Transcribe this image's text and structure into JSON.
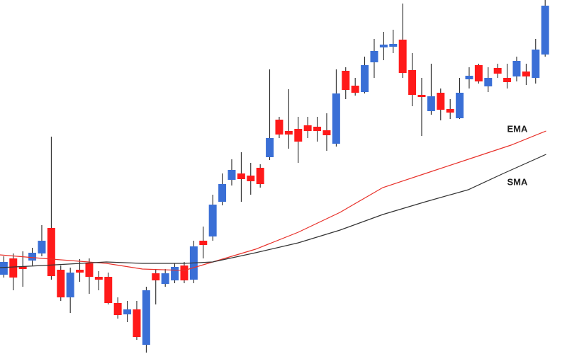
{
  "chart_data": {
    "type": "candlestick",
    "up_color": "#3a6fd6",
    "down_color": "#ff1a1a",
    "xlim": [
      -0.4,
      59.3
    ],
    "ylim": [
      0,
      500
    ],
    "open": [
      112,
      135,
      124,
      132,
      142,
      178,
      119,
      80,
      119,
      128,
      109,
      109,
      72,
      56,
      63,
      13,
      114,
      99,
      104,
      125,
      105,
      160,
      166,
      215,
      246,
      255,
      252,
      263,
      278,
      331,
      315,
      318,
      323,
      321,
      316,
      297,
      400,
      379,
      370,
      412,
      433,
      434,
      444,
      401,
      366,
      343,
      369,
      346,
      333,
      388,
      408,
      378,
      404,
      390,
      392,
      399,
      390,
      423
    ],
    "high": [
      138,
      142,
      145,
      150,
      182,
      307,
      125,
      122,
      134,
      135,
      117,
      115,
      80,
      75,
      75,
      95,
      120,
      120,
      128,
      130,
      160,
      180,
      225,
      255,
      275,
      285,
      270,
      268,
      402,
      335,
      374,
      335,
      335,
      335,
      340,
      402,
      405,
      390,
      420,
      445,
      455,
      458,
      495,
      425,
      390,
      410,
      375,
      360,
      390,
      405,
      410,
      405,
      410,
      410,
      420,
      410,
      445,
      500
    ],
    "low": [
      108,
      90,
      95,
      125,
      138,
      105,
      75,
      58,
      102,
      85,
      90,
      70,
      50,
      45,
      20,
      2,
      70,
      95,
      100,
      100,
      100,
      135,
      160,
      210,
      238,
      215,
      225,
      235,
      274,
      305,
      290,
      270,
      305,
      300,
      287,
      293,
      360,
      365,
      368,
      390,
      415,
      425,
      390,
      350,
      308,
      338,
      330,
      332,
      332,
      375,
      382,
      370,
      390,
      375,
      385,
      380,
      382,
      420
    ],
    "close": [
      130,
      108,
      120,
      143,
      160,
      110,
      80,
      115,
      115,
      109,
      105,
      72,
      55,
      63,
      24,
      90,
      104,
      114,
      123,
      104,
      152,
      154,
      211,
      240,
      260,
      247,
      244,
      240,
      305,
      310,
      310,
      300,
      315,
      315,
      309,
      368,
      373,
      369,
      408,
      428,
      437,
      438,
      397,
      366,
      363,
      364,
      345,
      341,
      369,
      393,
      385,
      390,
      396,
      384,
      414,
      392,
      430,
      492
    ],
    "series": [
      {
        "name": "EMA",
        "color": "#e8312a",
        "x": [
          -0.4,
          4.1,
          10.8,
          14.6,
          19,
          22,
          26.5,
          31,
          35.4,
          39.9,
          44.4,
          48.9,
          53.4,
          57.1
        ],
        "values": [
          140,
          135,
          128,
          120,
          118,
          130,
          148,
          172,
          200,
          235,
          255,
          275,
          295,
          315
        ]
      },
      {
        "name": "SMA",
        "color": "#333333",
        "x": [
          -0.4,
          4.1,
          10.8,
          14.6,
          19,
          22,
          26.5,
          31,
          35.4,
          39.9,
          44.4,
          48.9,
          52.6,
          57.1
        ],
        "values": [
          122,
          125,
          130,
          128,
          128,
          130,
          143,
          157,
          175,
          197,
          215,
          232,
          255,
          282
        ]
      }
    ]
  }
}
